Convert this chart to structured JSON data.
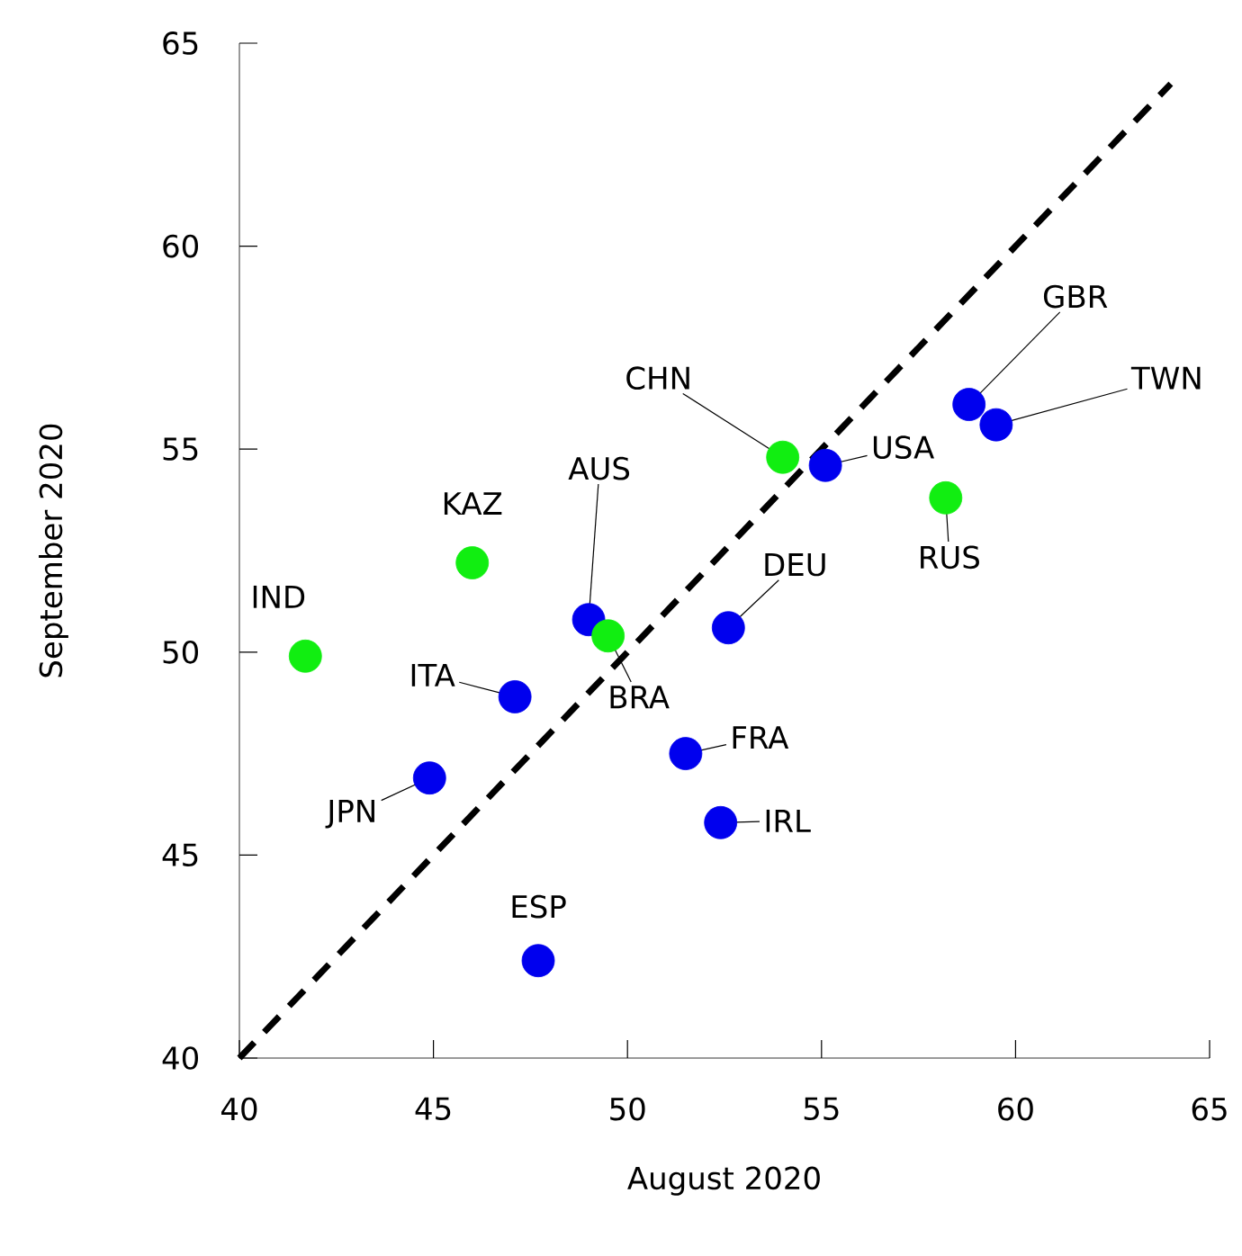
{
  "chart_data": {
    "type": "scatter",
    "xlabel": "August 2020",
    "ylabel": "September 2020",
    "xlim": [
      40,
      65
    ],
    "ylim": [
      40,
      65
    ],
    "xticks": [
      40,
      45,
      50,
      55,
      60,
      65
    ],
    "yticks": [
      40,
      45,
      50,
      55,
      60,
      65
    ],
    "series": [
      {
        "type": "line",
        "color": "#000000",
        "line_style": "dashed",
        "marker": "none",
        "x": [
          40,
          64
        ],
        "values": [
          40,
          64
        ]
      },
      {
        "color": "#0000ee",
        "marker": "circle",
        "x": [
          55.1,
          58.8,
          59.5,
          52.6,
          49.0,
          47.1,
          51.5,
          52.4,
          44.9,
          47.7
        ],
        "values": [
          54.6,
          56.1,
          55.6,
          50.6,
          50.8,
          48.9,
          47.5,
          45.8,
          46.9,
          42.4
        ]
      },
      {
        "color": "#11ee11",
        "marker": "circle",
        "x": [
          41.7,
          46.0,
          49.5,
          54.0,
          58.2
        ],
        "values": [
          49.9,
          52.2,
          50.4,
          54.8,
          53.8
        ]
      }
    ],
    "annotations": [
      {
        "text": "IND",
        "x": 41.7,
        "y": 49.9
      },
      {
        "text": "KAZ",
        "x": 46.0,
        "y": 52.2
      },
      {
        "text": "AUS",
        "x": 49.0,
        "y": 50.8
      },
      {
        "text": "BRA",
        "x": 49.5,
        "y": 50.4
      },
      {
        "text": "ITA",
        "x": 47.1,
        "y": 48.9
      },
      {
        "text": "JPN",
        "x": 44.9,
        "y": 46.9
      },
      {
        "text": "ESP",
        "x": 47.7,
        "y": 42.4
      },
      {
        "text": "FRA",
        "x": 51.5,
        "y": 47.5
      },
      {
        "text": "IRL",
        "x": 52.4,
        "y": 45.8
      },
      {
        "text": "DEU",
        "x": 52.6,
        "y": 50.6
      },
      {
        "text": "CHN",
        "x": 54.0,
        "y": 54.8
      },
      {
        "text": "USA",
        "x": 55.1,
        "y": 54.6
      },
      {
        "text": "RUS",
        "x": 58.2,
        "y": 53.8
      },
      {
        "text": "GBR",
        "x": 58.8,
        "y": 56.1
      },
      {
        "text": "TWN",
        "x": 59.5,
        "y": 55.6
      }
    ]
  }
}
